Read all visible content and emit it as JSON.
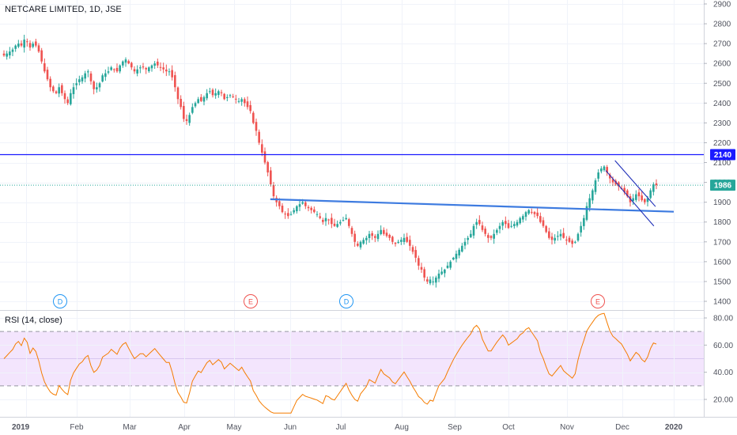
{
  "header": {
    "title": "NETCARE LIMITED, 1D, JSE"
  },
  "rsi_panel": {
    "title": "RSI (14, close)"
  },
  "colors": {
    "up": "#26a69a",
    "down": "#ef5350",
    "resistance": "#1a1aff",
    "trendline": "#3d7be0",
    "channel": "#1f2fb8",
    "rsi_line": "#f57c00",
    "rsi_band": "#f3e5fd",
    "last_price_tag": "#26a69a"
  },
  "chart_data": [
    {
      "type": "candlestick",
      "title": "NETCARE LIMITED, 1D, JSE",
      "ylim": [
        1350,
        2920
      ],
      "y_ticks": [
        "2900",
        "2800",
        "2700",
        "2600",
        "2500",
        "2400",
        "2300",
        "2200",
        "2100",
        "2000",
        "1900",
        "1800",
        "1700",
        "1600",
        "1500",
        "1400"
      ],
      "x_ticks": [
        "2019",
        "Feb",
        "Mar",
        "Apr",
        "May",
        "Jun",
        "Jul",
        "Aug",
        "Sep",
        "Oct",
        "Nov",
        "Dec",
        "2020"
      ],
      "horizontal_line": {
        "value": 2140,
        "label": "2140"
      },
      "last_price": {
        "value": 1986,
        "label": "1986"
      },
      "close_series": [
        2640,
        2650,
        2660,
        2670,
        2690,
        2700,
        2690,
        2720,
        2710,
        2680,
        2700,
        2690,
        2660,
        2610,
        2560,
        2520,
        2480,
        2460,
        2450,
        2480,
        2450,
        2420,
        2400,
        2450,
        2480,
        2500,
        2520,
        2530,
        2550,
        2560,
        2510,
        2470,
        2480,
        2500,
        2540,
        2550,
        2560,
        2580,
        2570,
        2560,
        2590,
        2610,
        2620,
        2600,
        2580,
        2560,
        2570,
        2580,
        2580,
        2570,
        2580,
        2590,
        2600,
        2590,
        2580,
        2570,
        2560,
        2560,
        2530,
        2480,
        2420,
        2380,
        2320,
        2310,
        2340,
        2380,
        2400,
        2420,
        2410,
        2430,
        2450,
        2460,
        2440,
        2450,
        2460,
        2450,
        2420,
        2430,
        2440,
        2430,
        2420,
        2410,
        2420,
        2400,
        2380,
        2360,
        2300,
        2260,
        2200,
        2150,
        2100,
        2050,
        1990,
        1930,
        1900,
        1880,
        1850,
        1840,
        1830,
        1840,
        1860,
        1880,
        1890,
        1900,
        1880,
        1870,
        1860,
        1850,
        1840,
        1820,
        1800,
        1820,
        1810,
        1790,
        1780,
        1790,
        1800,
        1810,
        1820,
        1780,
        1740,
        1700,
        1680,
        1700,
        1710,
        1720,
        1740,
        1730,
        1720,
        1740,
        1760,
        1740,
        1730,
        1720,
        1700,
        1690,
        1700,
        1710,
        1720,
        1700,
        1680,
        1650,
        1620,
        1580,
        1560,
        1520,
        1500,
        1510,
        1500,
        1520,
        1540,
        1550,
        1560,
        1580,
        1600,
        1620,
        1640,
        1660,
        1680,
        1700,
        1720,
        1740,
        1780,
        1800,
        1790,
        1760,
        1740,
        1720,
        1720,
        1740,
        1760,
        1780,
        1800,
        1790,
        1770,
        1780,
        1790,
        1800,
        1820,
        1830,
        1850,
        1860,
        1850,
        1840,
        1830,
        1800,
        1780,
        1750,
        1720,
        1710,
        1720,
        1730,
        1740,
        1720,
        1710,
        1700,
        1690,
        1700,
        1740,
        1780,
        1820,
        1880,
        1920,
        1960,
        2010,
        2050,
        2070,
        2080,
        2050,
        2020,
        2000,
        1990,
        1980,
        1970,
        1950,
        1930,
        1900,
        1920,
        1940,
        1930,
        1910,
        1900,
        1920,
        1960,
        1990,
        1986
      ],
      "trendline": {
        "from": [
          "May 21",
          1915
        ],
        "to": [
          "2020",
          1852
        ]
      },
      "descending_channel": [
        {
          "from": [
            "Nov 22",
            2060
          ],
          "to": [
            "Dec 20",
            1780
          ]
        },
        {
          "from": [
            "Nov 27",
            2110
          ],
          "to": [
            "Dec 21",
            1878
          ]
        }
      ]
    },
    {
      "type": "line",
      "title": "RSI (14, close)",
      "ylim": [
        10,
        85
      ],
      "y_ticks": [
        "80.00",
        "60.00",
        "40.00",
        "20.00"
      ],
      "band": [
        30,
        70
      ],
      "midline": 50
    }
  ],
  "events": [
    {
      "label": "D"
    },
    {
      "label": "E"
    },
    {
      "label": "D"
    },
    {
      "label": "E"
    }
  ]
}
